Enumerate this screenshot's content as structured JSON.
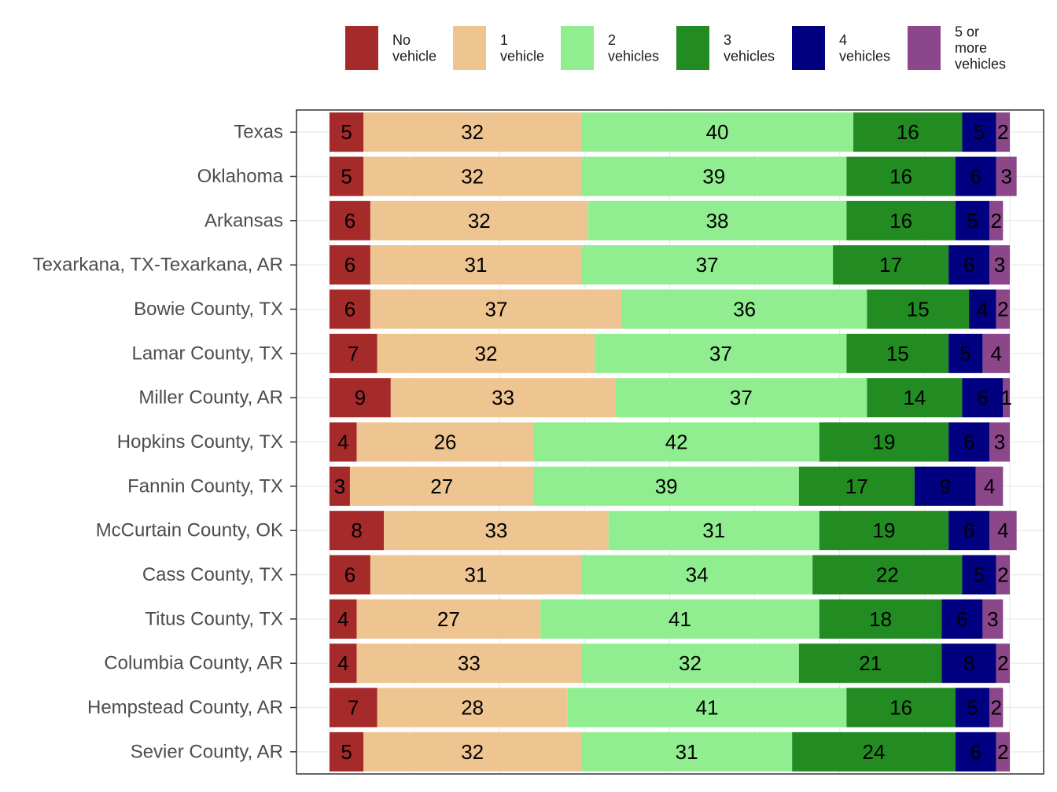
{
  "chart_data": {
    "type": "bar",
    "orientation": "horizontal",
    "stacked": true,
    "normalized_to": 100,
    "title": "",
    "xlabel": "",
    "ylabel": "",
    "xlim": [
      0,
      100
    ],
    "grid": true,
    "legend_position": "top",
    "categories": [
      "Texas",
      "Oklahoma",
      "Arkansas",
      "Texarkana, TX-Texarkana, AR",
      "Bowie County, TX",
      "Lamar County, TX",
      "Miller County, AR",
      "Hopkins County, TX",
      "Fannin County, TX",
      "McCurtain County, OK",
      "Cass County, TX",
      "Titus County, TX",
      "Columbia County, AR",
      "Hempstead County, AR",
      "Sevier County, AR"
    ],
    "series": [
      {
        "name": "No vehicle",
        "legend_lines": [
          "No",
          "vehicle"
        ],
        "color": "#a52a2a",
        "values": [
          5,
          5,
          6,
          6,
          6,
          7,
          9,
          4,
          3,
          8,
          6,
          4,
          4,
          7,
          5
        ]
      },
      {
        "name": "1 vehicle",
        "legend_lines": [
          "1",
          "vehicle"
        ],
        "color": "#eec591",
        "values": [
          32,
          32,
          32,
          31,
          37,
          32,
          33,
          26,
          27,
          33,
          31,
          27,
          33,
          28,
          32
        ]
      },
      {
        "name": "2 vehicles",
        "legend_lines": [
          "2",
          "vehicles"
        ],
        "color": "#90ee90",
        "values": [
          40,
          39,
          38,
          37,
          36,
          37,
          37,
          42,
          39,
          31,
          34,
          41,
          32,
          41,
          31
        ]
      },
      {
        "name": "3 vehicles",
        "legend_lines": [
          "3",
          "vehicles"
        ],
        "color": "#228b22",
        "values": [
          16,
          16,
          16,
          17,
          15,
          15,
          14,
          19,
          17,
          19,
          22,
          18,
          21,
          16,
          24
        ]
      },
      {
        "name": "4 vehicles",
        "legend_lines": [
          "4",
          "vehicles"
        ],
        "color": "#000080",
        "values": [
          5,
          6,
          5,
          6,
          4,
          5,
          6,
          6,
          9,
          6,
          5,
          6,
          8,
          5,
          6
        ]
      },
      {
        "name": "5 or more vehicles",
        "legend_lines": [
          "5 or",
          "more",
          "vehicles"
        ],
        "color": "#8b4789",
        "values": [
          2,
          3,
          2,
          3,
          2,
          4,
          1,
          3,
          4,
          4,
          2,
          3,
          2,
          2,
          2
        ]
      }
    ]
  }
}
